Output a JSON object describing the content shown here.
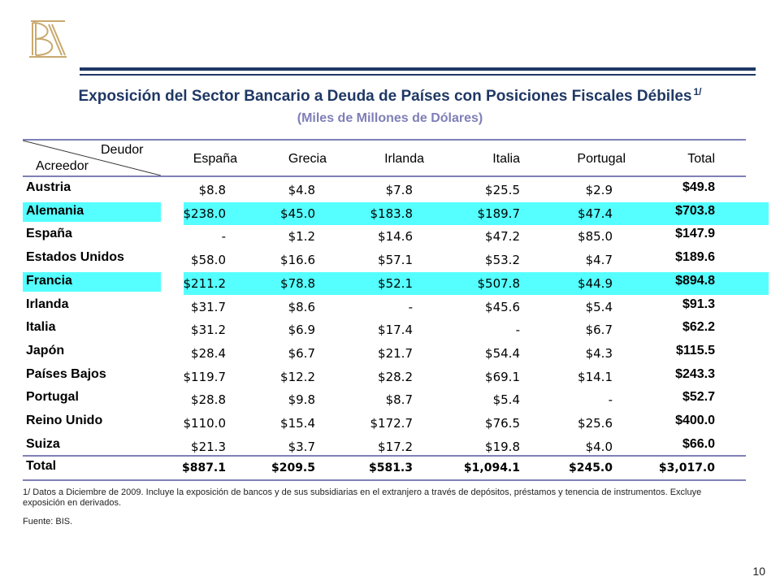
{
  "title": "Exposición del Sector Bancario a Deuda de Países con Posiciones Fiscales Débiles",
  "title_note": "1/",
  "subtitle": "(Miles de Millones de Dólares)",
  "header": {
    "deudor": "Deudor",
    "acreedor": "Acreedor",
    "columns": [
      "España",
      "Grecia",
      "Irlanda",
      "Italia",
      "Portugal",
      "Total"
    ]
  },
  "rows": [
    {
      "name": "Austria",
      "values": [
        "$8.8",
        "$4.8",
        "$7.8",
        "$25.5",
        "$2.9"
      ],
      "total": "$49.8",
      "highlight": false
    },
    {
      "name": "Alemania",
      "values": [
        "$238.0",
        "$45.0",
        "$183.8",
        "$189.7",
        "$47.4"
      ],
      "total": "$703.8",
      "highlight": true
    },
    {
      "name": "España",
      "values": [
        "-",
        "$1.2",
        "$14.6",
        "$47.2",
        "$85.0"
      ],
      "total": "$147.9",
      "highlight": false
    },
    {
      "name": "Estados Unidos",
      "values": [
        "$58.0",
        "$16.6",
        "$57.1",
        "$53.2",
        "$4.7"
      ],
      "total": "$189.6",
      "highlight": false
    },
    {
      "name": "Francia",
      "values": [
        "$211.2",
        "$78.8",
        "$52.1",
        "$507.8",
        "$44.9"
      ],
      "total": "$894.8",
      "highlight": true
    },
    {
      "name": "Irlanda",
      "values": [
        "$31.7",
        "$8.6",
        "-",
        "$45.6",
        "$5.4"
      ],
      "total": "$91.3",
      "highlight": false
    },
    {
      "name": "Italia",
      "values": [
        "$31.2",
        "$6.9",
        "$17.4",
        "-",
        "$6.7"
      ],
      "total": "$62.2",
      "highlight": false
    },
    {
      "name": "Japón",
      "values": [
        "$28.4",
        "$6.7",
        "$21.7",
        "$54.4",
        "$4.3"
      ],
      "total": "$115.5",
      "highlight": false
    },
    {
      "name": "Países Bajos",
      "values": [
        "$119.7",
        "$12.2",
        "$28.2",
        "$69.1",
        "$14.1"
      ],
      "total": "$243.3",
      "highlight": false
    },
    {
      "name": "Portugal",
      "values": [
        "$28.8",
        "$9.8",
        "$8.7",
        "$5.4",
        "-"
      ],
      "total": "$52.7",
      "highlight": false
    },
    {
      "name": "Reino Unido",
      "values": [
        "$110.0",
        "$15.4",
        "$172.7",
        "$76.5",
        "$25.6"
      ],
      "total": "$400.0",
      "highlight": false
    },
    {
      "name": "Suiza",
      "values": [
        "$21.3",
        "$3.7",
        "$17.2",
        "$19.8",
        "$4.0"
      ],
      "total": "$66.0",
      "highlight": false
    }
  ],
  "total_row": {
    "name": "Total",
    "values": [
      "$887.1",
      "$209.5",
      "$581.3",
      "$1,094.1",
      "$245.0",
      "$3,017.0"
    ]
  },
  "note": "1/ Datos a Diciembre de 2009. Incluye la exposición de bancos y de sus subsidiarias en el extranjero a través de depósitos, préstamos y tenencia de instrumentos. Excluye exposición en derivados.",
  "source": "Fuente: BIS.",
  "page_number": "10",
  "colors": {
    "navy": "#1f3864",
    "accent": "#7f7fb8",
    "highlight": "#55ffff",
    "logo": "#c9a96e"
  }
}
